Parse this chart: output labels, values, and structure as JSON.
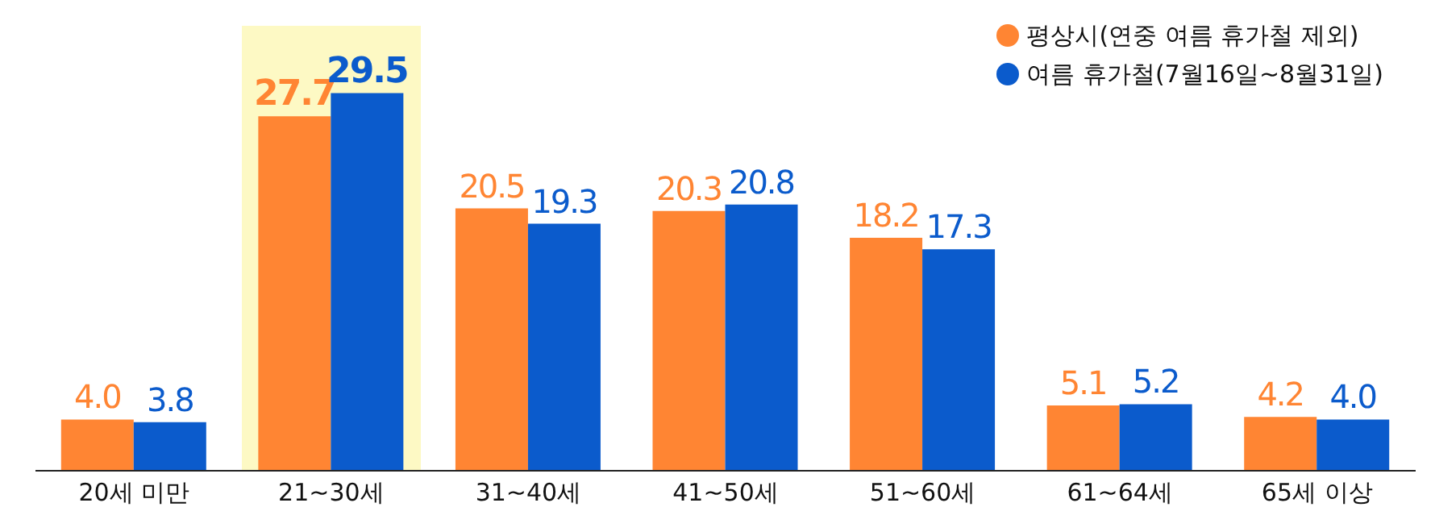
{
  "chart_data": {
    "type": "bar",
    "categories": [
      "20세 미만",
      "21~30세",
      "31~40세",
      "41~50세",
      "51~60세",
      "61~64세",
      "65세 이상"
    ],
    "series": [
      {
        "name": "평상시(연중 여름 휴가철 제외)",
        "color": "#ff8533",
        "values": [
          4.0,
          27.7,
          20.5,
          20.3,
          18.2,
          5.1,
          4.2
        ],
        "value_labels": [
          "4.0",
          "27.7",
          "20.5",
          "20.3",
          "18.2",
          "5.1",
          "4.2"
        ]
      },
      {
        "name": "여름 휴가철(7월16일~8월31일)",
        "color": "#0b5bcc",
        "values": [
          3.8,
          29.5,
          19.3,
          20.8,
          17.3,
          5.2,
          4.0
        ],
        "value_labels": [
          "3.8",
          "29.5",
          "19.3",
          "20.8",
          "17.3",
          "5.2",
          "4.0"
        ]
      }
    ],
    "bands": [
      {
        "axis": "x",
        "from": "21~30세",
        "to": "21~30세",
        "color": "#fdf9c4"
      }
    ],
    "legend": "top right"
  }
}
